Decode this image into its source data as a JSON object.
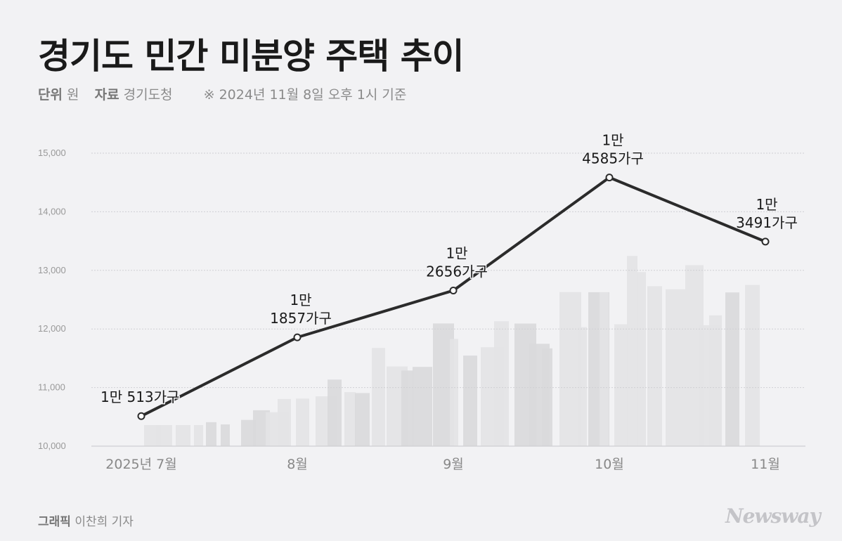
{
  "header": {
    "title": "경기도 민간 미분양 주택 추이",
    "unit_label": "단위",
    "unit_value": "원",
    "source_label": "자료",
    "source_value": "경기도청",
    "note": "※ 2024년 11월 8일 오후 1시 기준"
  },
  "footer": {
    "credit_label": "그래픽",
    "credit_value": "이찬희 기자",
    "logo": "Newsway"
  },
  "colors": {
    "background": "#f2f2f4",
    "line": "#2b2b2b",
    "grid": "#cfcfd3",
    "buildings": "#d9d9dc"
  },
  "chart_data": {
    "type": "line",
    "categories": [
      "2025년 7월",
      "8월",
      "9월",
      "10월",
      "11월"
    ],
    "values": [
      10513,
      11857,
      12656,
      14585,
      13491
    ],
    "data_labels": [
      [
        "1만 513가구"
      ],
      [
        "1만",
        "1857가구"
      ],
      [
        "1만",
        "2656가구"
      ],
      [
        "1만",
        "4585가구"
      ],
      [
        "1만",
        "3491가구"
      ]
    ],
    "y_ticks": [
      "10,000",
      "11,000",
      "12,000",
      "13,000",
      "14,000",
      "15,000"
    ],
    "ylim": [
      10000,
      15000
    ],
    "grid": true,
    "legend": "none"
  }
}
